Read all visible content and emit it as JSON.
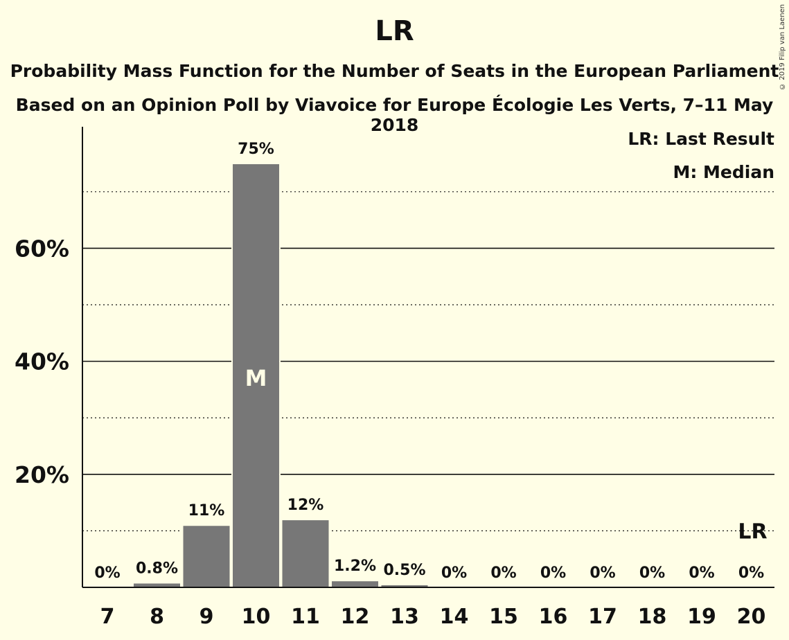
{
  "chart_data": {
    "type": "bar",
    "title": "LR",
    "subtitle": "Probability Mass Function for the Number of Seats in the European Parliament",
    "subtitle2": "Based on an Opinion Poll by Viavoice for Europe Écologie Les Verts, 7–11 May 2018",
    "copyright": "© 2019 Filip van Laenen",
    "categories": [
      "7",
      "8",
      "9",
      "10",
      "11",
      "12",
      "13",
      "14",
      "15",
      "16",
      "17",
      "18",
      "19",
      "20"
    ],
    "values": [
      0,
      0.8,
      11,
      75,
      12,
      1.2,
      0.5,
      0,
      0,
      0,
      0,
      0,
      0,
      0
    ],
    "value_labels": [
      "0%",
      "0.8%",
      "11%",
      "75%",
      "12%",
      "1.2%",
      "0.5%",
      "0%",
      "0%",
      "0%",
      "0%",
      "0%",
      "0%",
      "0%"
    ],
    "ylim": [
      0,
      81.5
    ],
    "yticks": [
      20,
      40,
      60
    ],
    "ytick_labels": [
      "20%",
      "40%",
      "60%"
    ],
    "minor_gridlines": [
      10,
      30,
      50,
      70
    ],
    "median_category": "10",
    "median_label": "M",
    "last_result_category": "20",
    "last_result_label": "LR",
    "legend": [
      "LR: Last Result",
      "M: Median"
    ],
    "bar_color": "#777777",
    "background": "#fffee6"
  }
}
